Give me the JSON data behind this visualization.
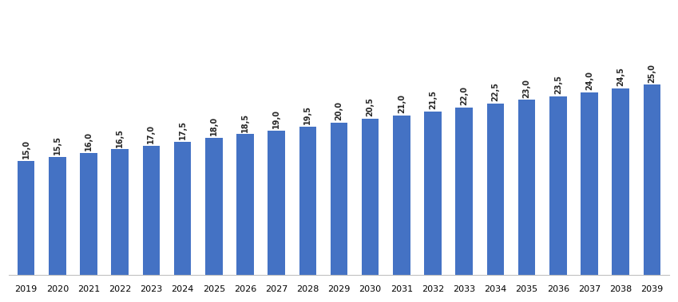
{
  "categories": [
    2019,
    2020,
    2021,
    2022,
    2023,
    2024,
    2025,
    2026,
    2027,
    2028,
    2029,
    2030,
    2031,
    2032,
    2033,
    2034,
    2035,
    2036,
    2037,
    2038,
    2039
  ],
  "values": [
    15.0,
    15.5,
    16.0,
    16.5,
    17.0,
    17.5,
    18.0,
    18.5,
    19.0,
    19.5,
    20.0,
    20.5,
    21.0,
    21.5,
    22.0,
    22.5,
    23.0,
    23.5,
    24.0,
    24.5,
    25.0
  ],
  "bar_color": "#4472C4",
  "label_color": "#262626",
  "label_fontsize": 7.0,
  "xlabel_fontsize": 8.0,
  "background_color": "#ffffff",
  "ylim": [
    0,
    35
  ],
  "bar_width": 0.55,
  "label_rotation": 90,
  "bottom_spine_color": "#c0c0c0"
}
